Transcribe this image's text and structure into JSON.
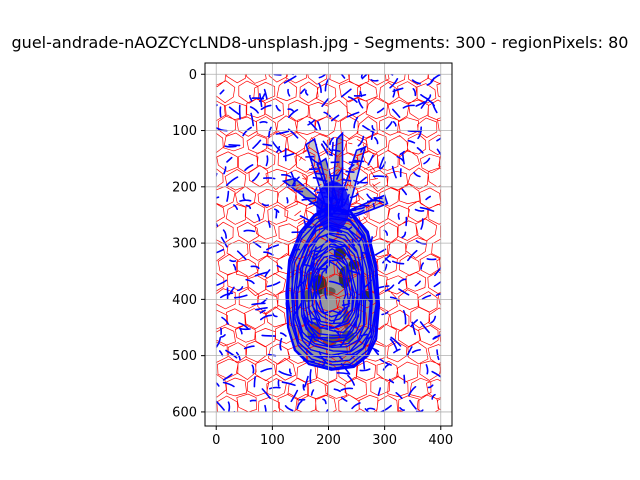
{
  "figure": {
    "title": "guel-andrade-nAOZCYcLND8-unsplash.jpg - Segments: 300 - regionPixels: 80"
  },
  "chart_data": {
    "type": "image-overlay",
    "title": "guel-andrade-nAOZCYcLND8-unsplash.jpg - Segments: 300 - regionPixels: 80",
    "xlabel": "",
    "ylabel": "",
    "xlim": [
      -20,
      420
    ],
    "ylim": [
      625,
      -20
    ],
    "y_inverted": true,
    "image_extent": {
      "x": [
        0,
        400
      ],
      "y": [
        0,
        600
      ]
    },
    "xticks": [
      0,
      100,
      200,
      300,
      400
    ],
    "yticks": [
      0,
      100,
      200,
      300,
      400,
      500,
      600
    ],
    "grid": true,
    "series": [
      {
        "name": "",
        "kind": "segment-boundaries",
        "color": "#ff0000"
      },
      {
        "name": "",
        "kind": "contours",
        "color": "#0000ff"
      }
    ],
    "pineapple": {
      "body_outline": [
        [
          200,
          235
        ],
        [
          240,
          245
        ],
        [
          270,
          280
        ],
        [
          285,
          340
        ],
        [
          290,
          410
        ],
        [
          285,
          470
        ],
        [
          270,
          500
        ],
        [
          245,
          520
        ],
        [
          205,
          525
        ],
        [
          165,
          515
        ],
        [
          140,
          490
        ],
        [
          128,
          450
        ],
        [
          125,
          390
        ],
        [
          130,
          330
        ],
        [
          150,
          280
        ],
        [
          175,
          250
        ]
      ],
      "leaves": [
        [
          [
            200,
            250
          ],
          [
            160,
            125
          ],
          [
            175,
            115
          ],
          [
            205,
            230
          ]
        ],
        [
          [
            205,
            240
          ],
          [
            215,
            115
          ],
          [
            225,
            105
          ],
          [
            225,
            235
          ]
        ],
        [
          [
            215,
            240
          ],
          [
            250,
            135
          ],
          [
            265,
            130
          ],
          [
            235,
            245
          ]
        ],
        [
          [
            200,
            250
          ],
          [
            120,
            190
          ],
          [
            140,
            185
          ],
          [
            205,
            240
          ]
        ],
        [
          [
            230,
            245
          ],
          [
            300,
            215
          ],
          [
            305,
            230
          ],
          [
            240,
            255
          ]
        ],
        [
          [
            210,
            245
          ],
          [
            180,
            160
          ],
          [
            195,
            150
          ],
          [
            220,
            240
          ]
        ]
      ],
      "fill_colors": [
        "#9a9a9a",
        "#5a5a5a",
        "#c8c8c8",
        "#333333"
      ]
    }
  }
}
